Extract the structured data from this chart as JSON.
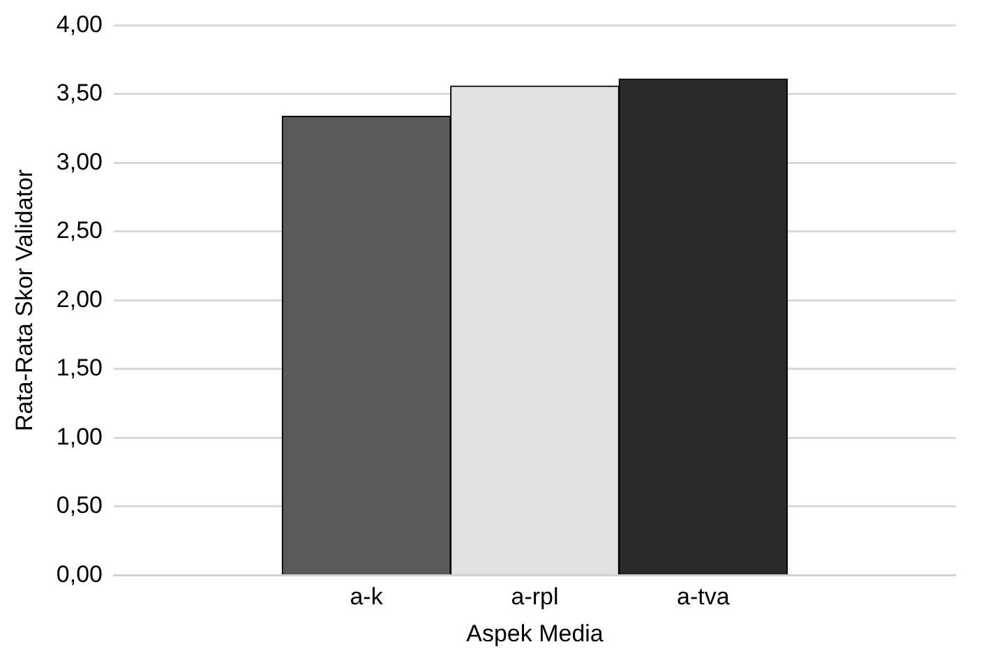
{
  "chart_data": {
    "type": "bar",
    "xlabel": "Aspek Media",
    "ylabel": "Rata-Rata Skor Validator",
    "categories": [
      "a-k",
      "a-rpl",
      "a-tva"
    ],
    "values": [
      3.34,
      3.56,
      3.61
    ],
    "colors": [
      "#5a5a5a",
      "#e2e2e2",
      "#2a2a2a"
    ],
    "ylim": [
      0,
      4
    ],
    "yticks": [
      {
        "value": 0,
        "label": "0,00"
      },
      {
        "value": 0.5,
        "label": "0,50"
      },
      {
        "value": 1,
        "label": "1,00"
      },
      {
        "value": 1.5,
        "label": "1,50"
      },
      {
        "value": 2,
        "label": "2,00"
      },
      {
        "value": 2.5,
        "label": "2,50"
      },
      {
        "value": 3,
        "label": "3,00"
      },
      {
        "value": 3.5,
        "label": "3,50"
      },
      {
        "value": 4,
        "label": "4,00"
      }
    ],
    "grid": "y"
  }
}
